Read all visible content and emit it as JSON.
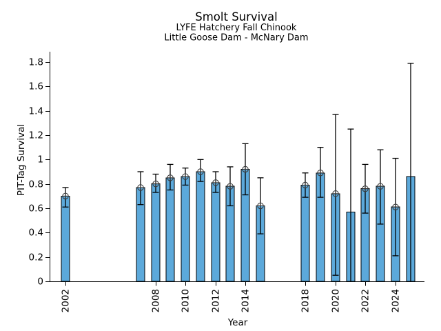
{
  "chart_data": {
    "type": "bar",
    "title": "Smolt Survival",
    "subtitle": [
      "LYFE Hatchery Fall Chinook",
      "Little Goose Dam - McNary Dam"
    ],
    "xlabel": "Year",
    "ylabel": "PIT-Tag Survival",
    "ylim": [
      0,
      1.88
    ],
    "xlim": [
      2001,
      2026
    ],
    "grid": false,
    "legend": null,
    "ytick_values": [
      0,
      0.2,
      0.4,
      0.6,
      0.8,
      1,
      1.2,
      1.4,
      1.6,
      1.8
    ],
    "ytick_labels": [
      "0",
      "0.2",
      "0.4",
      "0.6",
      "0.8",
      "1",
      "1.2",
      "1.4",
      "1.6",
      "1.8"
    ],
    "xtick_years": [
      2002,
      2008,
      2010,
      2012,
      2014,
      2018,
      2020,
      2022,
      2024
    ],
    "xtick_labels": [
      "2002",
      "2008",
      "2010",
      "2012",
      "2014",
      "2018",
      "2020",
      "2022",
      "2024"
    ],
    "colors": {
      "bar_fill": "#5CA9DB",
      "bar_edge": "#000000",
      "error_bar": "#000000",
      "marker": "#3a3a3a",
      "text": "#000000",
      "background": "#ffffff"
    },
    "marker_style": "circle-plus",
    "series": [
      {
        "name": "PIT-Tag Survival",
        "points": [
          {
            "year": 2002,
            "value": 0.7,
            "ci_low": 0.61,
            "ci_high": 0.77,
            "marker": true
          },
          {
            "year": 2007,
            "value": 0.77,
            "ci_low": 0.63,
            "ci_high": 0.9,
            "marker": true
          },
          {
            "year": 2008,
            "value": 0.8,
            "ci_low": 0.73,
            "ci_high": 0.88,
            "marker": true
          },
          {
            "year": 2009,
            "value": 0.85,
            "ci_low": 0.75,
            "ci_high": 0.96,
            "marker": true
          },
          {
            "year": 2010,
            "value": 0.86,
            "ci_low": 0.79,
            "ci_high": 0.93,
            "marker": true
          },
          {
            "year": 2011,
            "value": 0.9,
            "ci_low": 0.82,
            "ci_high": 1.0,
            "marker": true
          },
          {
            "year": 2012,
            "value": 0.81,
            "ci_low": 0.73,
            "ci_high": 0.9,
            "marker": true
          },
          {
            "year": 2013,
            "value": 0.78,
            "ci_low": 0.62,
            "ci_high": 0.94,
            "marker": true
          },
          {
            "year": 2014,
            "value": 0.92,
            "ci_low": 0.71,
            "ci_high": 1.13,
            "marker": true
          },
          {
            "year": 2015,
            "value": 0.62,
            "ci_low": 0.39,
            "ci_high": 0.85,
            "marker": true
          },
          {
            "year": 2018,
            "value": 0.79,
            "ci_low": 0.69,
            "ci_high": 0.89,
            "marker": true
          },
          {
            "year": 2019,
            "value": 0.89,
            "ci_low": 0.69,
            "ci_high": 1.1,
            "marker": true
          },
          {
            "year": 2020,
            "value": 0.72,
            "ci_low": 0.05,
            "ci_high": 1.37,
            "marker": true
          },
          {
            "year": 2021,
            "value": 0.57,
            "ci_low": 0.0,
            "ci_high": 1.25,
            "marker": false
          },
          {
            "year": 2022,
            "value": 0.76,
            "ci_low": 0.56,
            "ci_high": 0.96,
            "marker": true
          },
          {
            "year": 2023,
            "value": 0.78,
            "ci_low": 0.47,
            "ci_high": 1.08,
            "marker": true
          },
          {
            "year": 2024,
            "value": 0.61,
            "ci_low": 0.21,
            "ci_high": 1.01,
            "marker": true
          },
          {
            "year": 2025,
            "value": 0.86,
            "ci_low": 0.0,
            "ci_high": 1.79,
            "marker": false
          }
        ]
      }
    ]
  }
}
